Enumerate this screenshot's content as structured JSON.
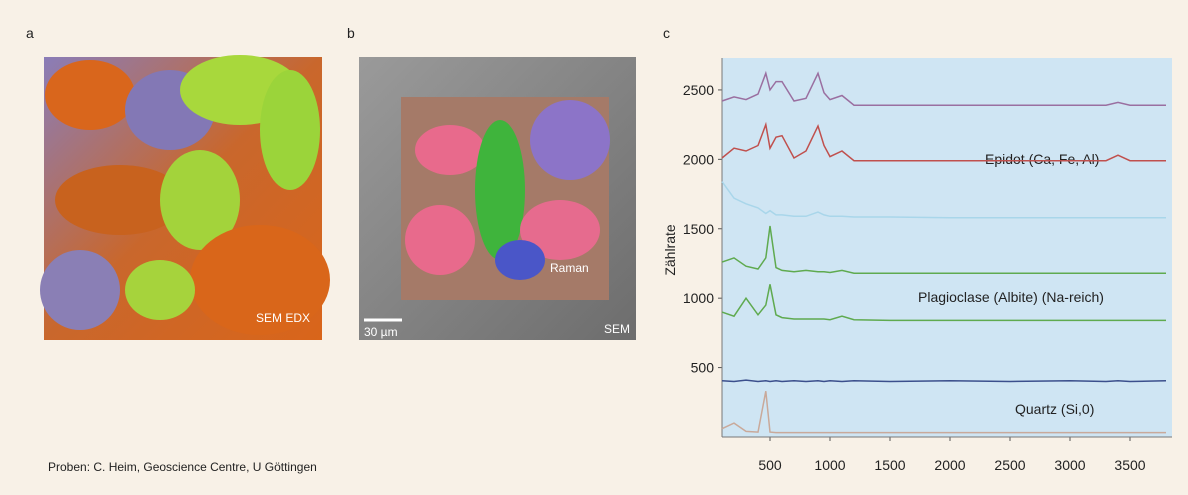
{
  "panels": {
    "a": {
      "label": "a",
      "caption": "SEM EDX"
    },
    "b": {
      "label": "b",
      "scale_bar": "30 µm",
      "captions": [
        "Raman",
        "SEM"
      ]
    }
  },
  "credit": "Proben: C. Heim, Geoscience Centre, U Göttingen",
  "chart_data": {
    "type": "line",
    "panel_label": "c",
    "ylabel": "Zählrate",
    "xlim": [
      100,
      3850
    ],
    "ylim": [
      0,
      2730
    ],
    "xticks": [
      500,
      1000,
      1500,
      2000,
      2500,
      3000,
      3500
    ],
    "yticks": [
      500,
      1000,
      1500,
      2000,
      2500
    ],
    "background": "#cfe5f3",
    "annotations": [
      "Epidot (Ca, Fe, Al)",
      "Plagioclase (Albite) (Na-reich)",
      "Quartz (Si,0)"
    ],
    "x": [
      100,
      200,
      300,
      400,
      465,
      500,
      550,
      600,
      700,
      800,
      900,
      950,
      1000,
      1100,
      1200,
      1500,
      2000,
      2500,
      3000,
      3300,
      3400,
      3500,
      3800
    ],
    "series": [
      {
        "color": "#9a6fa0",
        "values": [
          2420,
          2450,
          2430,
          2470,
          2620,
          2500,
          2560,
          2560,
          2420,
          2440,
          2620,
          2480,
          2430,
          2460,
          2390,
          2390,
          2390,
          2390,
          2390,
          2390,
          2410,
          2390,
          2390
        ]
      },
      {
        "color": "#c0504d",
        "values": [
          2010,
          2080,
          2060,
          2100,
          2250,
          2080,
          2160,
          2170,
          2010,
          2060,
          2240,
          2100,
          2020,
          2060,
          1990,
          1990,
          1990,
          1990,
          1990,
          1990,
          2030,
          1990,
          1990
        ]
      },
      {
        "color": "#a9d6ea",
        "values": [
          1840,
          1720,
          1680,
          1650,
          1610,
          1630,
          1600,
          1600,
          1590,
          1590,
          1620,
          1600,
          1590,
          1590,
          1585,
          1585,
          1580,
          1580,
          1580,
          1580,
          1580,
          1580,
          1580
        ]
      },
      {
        "color": "#5faa4f",
        "values": [
          1260,
          1290,
          1230,
          1210,
          1290,
          1520,
          1220,
          1200,
          1190,
          1200,
          1190,
          1190,
          1185,
          1200,
          1180,
          1180,
          1180,
          1180,
          1180,
          1180,
          1180,
          1180,
          1180
        ]
      },
      {
        "color": "#5faa4f",
        "values": [
          900,
          870,
          1000,
          880,
          950,
          1100,
          880,
          860,
          850,
          850,
          850,
          850,
          845,
          870,
          845,
          840,
          840,
          840,
          840,
          840,
          840,
          840,
          840
        ]
      },
      {
        "color": "#3b4f8c",
        "values": [
          405,
          400,
          410,
          400,
          405,
          400,
          405,
          400,
          405,
          400,
          405,
          400,
          405,
          400,
          405,
          400,
          405,
          400,
          405,
          400,
          405,
          400,
          405
        ]
      },
      {
        "color": "#c9a99a",
        "values": [
          60,
          100,
          40,
          35,
          330,
          35,
          32,
          32,
          32,
          32,
          32,
          32,
          32,
          32,
          32,
          32,
          32,
          32,
          32,
          32,
          32,
          32,
          32
        ]
      }
    ]
  }
}
